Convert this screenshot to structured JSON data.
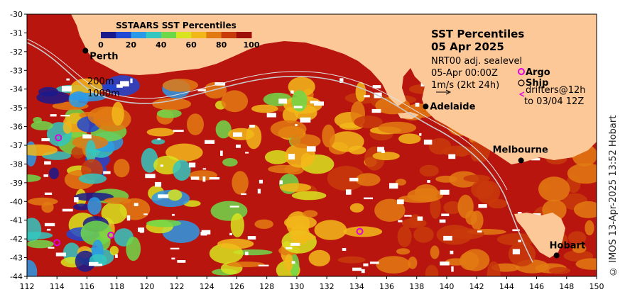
{
  "map": {
    "x_ticks": [
      "112",
      "114",
      "116",
      "118",
      "120",
      "122",
      "124",
      "126",
      "128",
      "130",
      "132",
      "134",
      "136",
      "138",
      "140",
      "142",
      "144",
      "146",
      "148",
      "150"
    ],
    "y_ticks": [
      "-30",
      "-31",
      "-32",
      "-33",
      "-34",
      "-35",
      "-36",
      "-37",
      "-38",
      "-39",
      "-40",
      "-41",
      "-42",
      "-43",
      "-44"
    ],
    "lon_range": [
      112,
      150
    ],
    "lat_range": [
      -44,
      -30
    ],
    "land_color": "#fcc898",
    "ocean_base_color": "#b8150f"
  },
  "legend": {
    "title": "SSTAARS SST Percentiles",
    "ticks": [
      "0",
      "20",
      "40",
      "60",
      "80",
      "100"
    ],
    "colors": [
      "#1a1a8c",
      "#1f48d4",
      "#2a9ae8",
      "#33c7c0",
      "#6fd84a",
      "#d8e420",
      "#f2b81a",
      "#e27a12",
      "#c83a0a",
      "#9e0f0a"
    ]
  },
  "info": {
    "title_line1": "SST Percentiles",
    "title_line2": "05 Apr 2025",
    "line_nrt": "NRT00 adj. sealevel",
    "line_time": "05-Apr 00:00Z",
    "line_speed": "1m/s (2kt 24h)",
    "argo_label": "Argo",
    "ship_label": "Ship",
    "drifters_line1": "drifters@12h",
    "drifters_line2": "to 03/04 12Z"
  },
  "contours": {
    "label_200": "200m",
    "label_1000": "1000m"
  },
  "cities": [
    {
      "name": "Perth",
      "lon": 115.9,
      "lat": -31.95
    },
    {
      "name": "Adelaide",
      "lon": 138.6,
      "lat": -34.93
    },
    {
      "name": "Melbourne",
      "lon": 144.96,
      "lat": -37.81
    },
    {
      "name": "Hobart",
      "lon": 147.33,
      "lat": -42.88
    }
  ],
  "argo_floats": [
    {
      "lon": 114.1,
      "lat": -36.6
    },
    {
      "lon": 117.6,
      "lat": -41.8
    },
    {
      "lon": 114.0,
      "lat": -42.2
    },
    {
      "lon": 134.2,
      "lat": -41.6
    }
  ],
  "credit": "© IMOS 13-Apr-2025 13:52 Hobart"
}
